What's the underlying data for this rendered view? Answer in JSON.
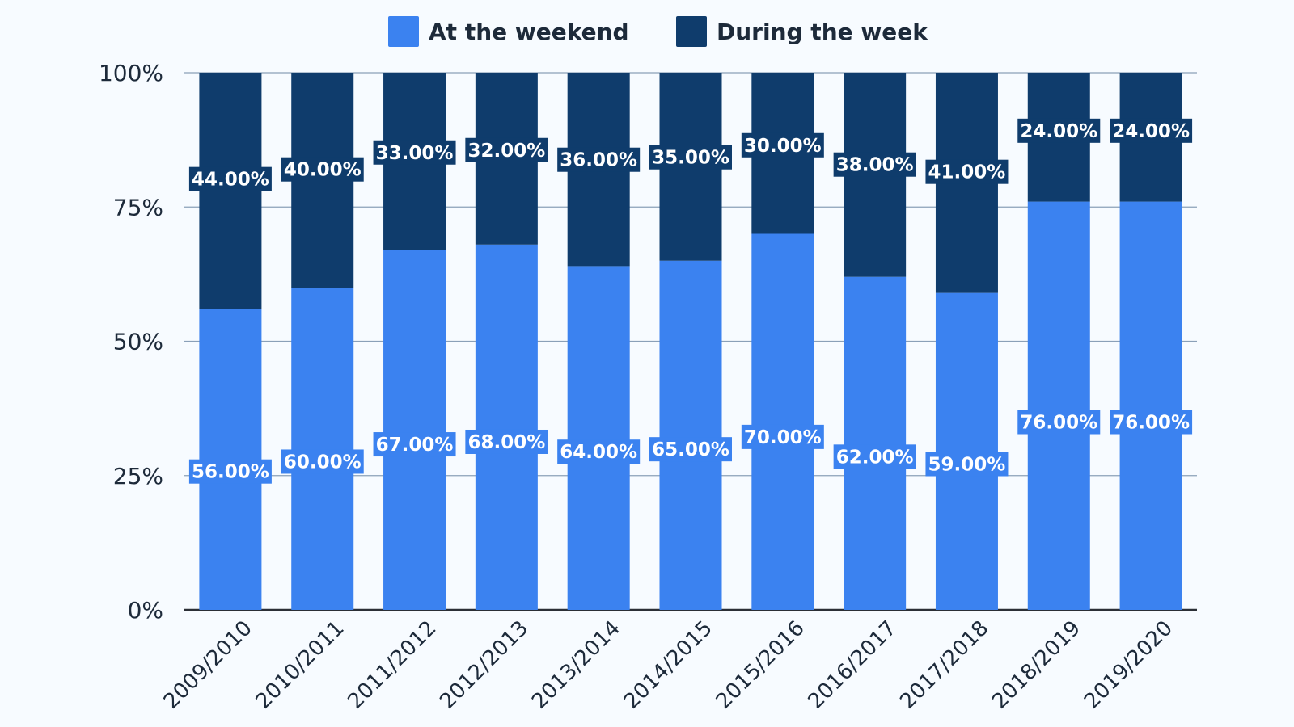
{
  "chart_data": {
    "type": "bar",
    "stacked": true,
    "categories": [
      "2009/2010",
      "2010/2011",
      "2011/2012",
      "2012/2013",
      "2013/2014",
      "2014/2015",
      "2015/2016",
      "2016/2017",
      "2017/2018",
      "2018/2019",
      "2019/2020"
    ],
    "series": [
      {
        "name": "At the weekend",
        "color": "#3b82f0",
        "values": [
          56,
          60,
          67,
          68,
          64,
          65,
          70,
          62,
          59,
          76,
          76
        ],
        "labels": [
          "56.00%",
          "60.00%",
          "67.00%",
          "68.00%",
          "64.00%",
          "65.00%",
          "70.00%",
          "62.00%",
          "59.00%",
          "76.00%",
          "76.00%"
        ]
      },
      {
        "name": "During the week",
        "color": "#0f3c6c",
        "values": [
          44,
          40,
          33,
          32,
          36,
          35,
          30,
          38,
          41,
          24,
          24
        ],
        "labels": [
          "44.00%",
          "40.00%",
          "33.00%",
          "32.00%",
          "36.00%",
          "35.00%",
          "30.00%",
          "38.00%",
          "41.00%",
          "24.00%",
          "24.00%"
        ]
      }
    ],
    "yticks": [
      0,
      25,
      50,
      75,
      100
    ],
    "ytick_labels": [
      "0%",
      "25%",
      "50%",
      "75%",
      "100%"
    ],
    "ylim": [
      0,
      100
    ],
    "grid": true,
    "legend_position": "top-center"
  }
}
